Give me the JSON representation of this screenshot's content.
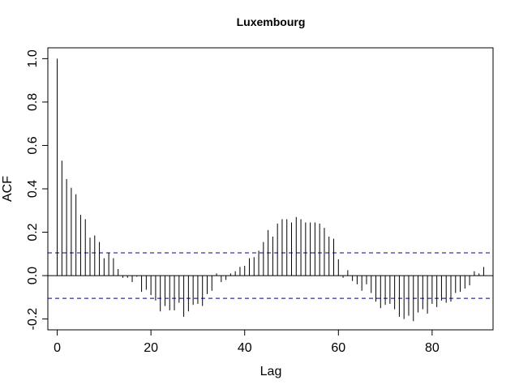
{
  "chart_data": {
    "type": "bar",
    "title": "Luxembourg",
    "xlabel": "Lag",
    "ylabel": "ACF",
    "xlim": [
      -2,
      93
    ],
    "ylim": [
      -0.25,
      1.05
    ],
    "x_ticks": [
      0,
      20,
      40,
      60,
      80
    ],
    "x_tick_labels": [
      "0",
      "20",
      "40",
      "60",
      "80"
    ],
    "y_ticks": [
      -0.2,
      0.0,
      0.2,
      0.4,
      0.6,
      0.8,
      1.0
    ],
    "y_tick_labels": [
      "-0.2",
      "0.0",
      "0.2",
      "0.4",
      "0.6",
      "0.8",
      "1.0"
    ],
    "confidence_bound": 0.105,
    "zero_line": 0,
    "colors": {
      "bars": "#000000",
      "bounds": "#00008B",
      "axes": "#000000"
    },
    "x": [
      0,
      1,
      2,
      3,
      4,
      5,
      6,
      7,
      8,
      9,
      10,
      11,
      12,
      13,
      14,
      15,
      16,
      17,
      18,
      19,
      20,
      21,
      22,
      23,
      24,
      25,
      26,
      27,
      28,
      29,
      30,
      31,
      32,
      33,
      34,
      35,
      36,
      37,
      38,
      39,
      40,
      41,
      42,
      43,
      44,
      45,
      46,
      47,
      48,
      49,
      50,
      51,
      52,
      53,
      54,
      55,
      56,
      57,
      58,
      59,
      60,
      61,
      62,
      63,
      64,
      65,
      66,
      67,
      68,
      69,
      70,
      71,
      72,
      73,
      74,
      75,
      76,
      77,
      78,
      79,
      80,
      81,
      82,
      83,
      84,
      85,
      86,
      87,
      88,
      89,
      90,
      91
    ],
    "values": [
      1.0,
      0.53,
      0.445,
      0.405,
      0.375,
      0.28,
      0.26,
      0.175,
      0.185,
      0.155,
      0.08,
      0.105,
      0.08,
      0.03,
      -0.01,
      -0.01,
      -0.03,
      -0.005,
      -0.075,
      -0.065,
      -0.09,
      -0.115,
      -0.165,
      -0.14,
      -0.16,
      -0.16,
      -0.125,
      -0.19,
      -0.165,
      -0.135,
      -0.13,
      -0.14,
      -0.085,
      -0.07,
      0.01,
      -0.03,
      -0.02,
      0.01,
      0.02,
      0.04,
      0.045,
      0.08,
      0.085,
      0.115,
      0.155,
      0.21,
      0.18,
      0.24,
      0.26,
      0.26,
      0.245,
      0.27,
      0.26,
      0.245,
      0.245,
      0.245,
      0.24,
      0.22,
      0.18,
      0.17,
      0.075,
      -0.01,
      0.025,
      -0.025,
      -0.04,
      -0.07,
      -0.04,
      -0.08,
      -0.12,
      -0.15,
      -0.135,
      -0.13,
      -0.155,
      -0.19,
      -0.2,
      -0.185,
      -0.21,
      -0.17,
      -0.155,
      -0.175,
      -0.13,
      -0.145,
      -0.115,
      -0.125,
      -0.12,
      -0.08,
      -0.075,
      -0.06,
      -0.045,
      0.02,
      0.01,
      0.04
    ]
  }
}
